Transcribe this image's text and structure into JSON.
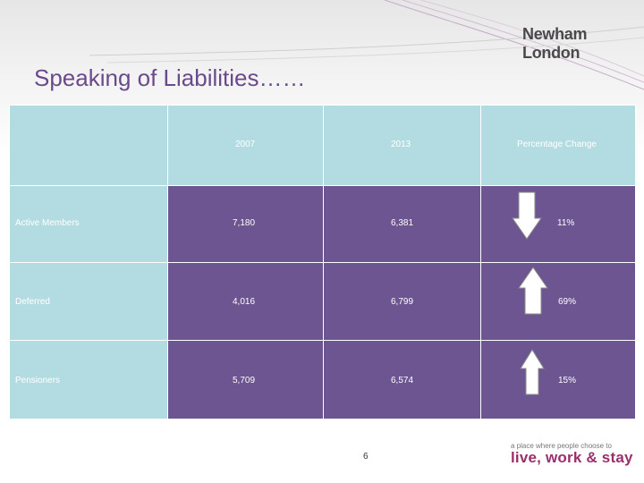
{
  "brand": {
    "logo_text": "Newham London",
    "tagline": "a place where people choose to",
    "slogan": "live, work & stay"
  },
  "slide": {
    "title": "Speaking of Liabilities……",
    "page_number": "6"
  },
  "table": {
    "headers": [
      "",
      "2007",
      "2013",
      "Percentage Change"
    ],
    "rows": [
      {
        "label": "Active Members",
        "v2007": "7,180",
        "v2013": "6,381",
        "change": "11%",
        "direction": "down"
      },
      {
        "label": "Deferred",
        "v2007": "4,016",
        "v2013": "6,799",
        "change": "69%",
        "direction": "up"
      },
      {
        "label": "Pensioners",
        "v2007": "5,709",
        "v2013": "6,574",
        "change": "15%",
        "direction": "up"
      }
    ]
  },
  "colors": {
    "header_bg": "#b3dce2",
    "value_bg": "#6c5590",
    "title": "#6b4a8c",
    "slogan": "#9b2f6b"
  }
}
